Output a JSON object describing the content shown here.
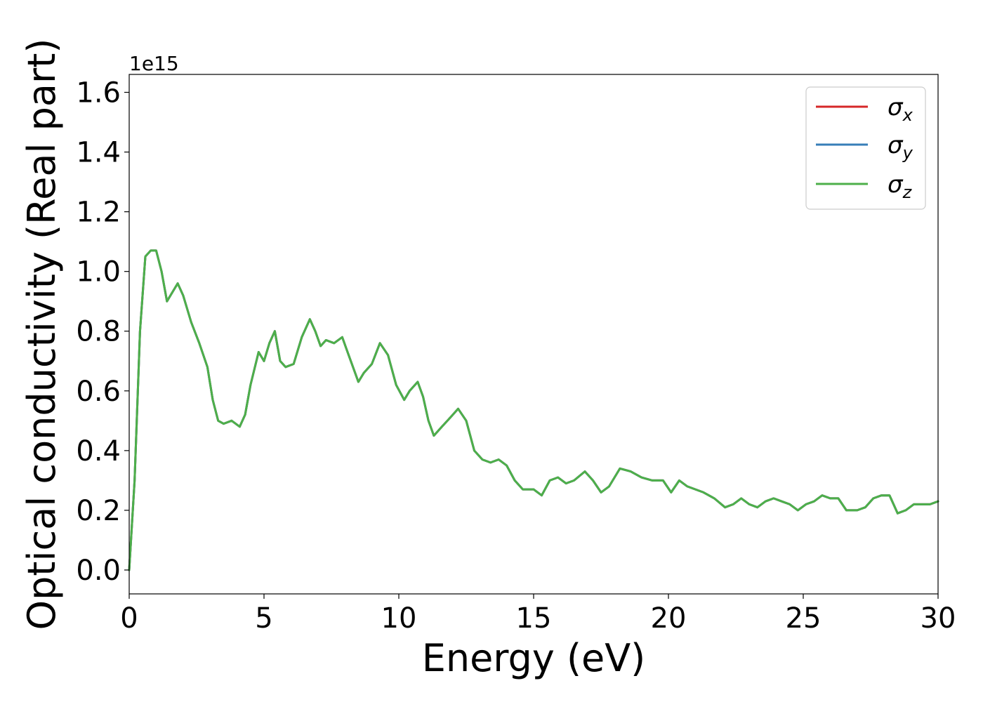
{
  "chart_data": {
    "type": "line",
    "xlabel": "Energy (eV)",
    "ylabel": "Optical conductivity (Real part)",
    "offset_text": "1e15",
    "xlim": [
      0,
      30
    ],
    "ylim": [
      -0.08,
      1.66
    ],
    "x_ticks": [
      0,
      5,
      10,
      15,
      20,
      25,
      30
    ],
    "x_tick_labels": [
      "0",
      "5",
      "10",
      "15",
      "20",
      "25",
      "30"
    ],
    "y_ticks": [
      0.0,
      0.2,
      0.4,
      0.6,
      0.8,
      1.0,
      1.2,
      1.4,
      1.6
    ],
    "y_tick_labels": [
      "0.0",
      "0.2",
      "0.4",
      "0.6",
      "0.8",
      "1.0",
      "1.2",
      "1.4",
      "1.6"
    ],
    "grid": false,
    "legend_position": "top-right",
    "x": [
      0,
      0.2,
      0.4,
      0.6,
      0.8,
      1.0,
      1.2,
      1.4,
      1.6,
      1.8,
      2.0,
      2.3,
      2.6,
      2.9,
      3.1,
      3.3,
      3.5,
      3.8,
      4.1,
      4.3,
      4.5,
      4.8,
      5.0,
      5.2,
      5.4,
      5.6,
      5.8,
      6.1,
      6.4,
      6.7,
      6.9,
      7.1,
      7.3,
      7.6,
      7.9,
      8.1,
      8.3,
      8.5,
      8.7,
      9.0,
      9.3,
      9.6,
      9.9,
      10.2,
      10.4,
      10.7,
      10.9,
      11.1,
      11.3,
      11.6,
      11.9,
      12.2,
      12.5,
      12.8,
      13.1,
      13.4,
      13.7,
      14.0,
      14.3,
      14.6,
      15.0,
      15.3,
      15.6,
      15.9,
      16.2,
      16.5,
      16.9,
      17.2,
      17.5,
      17.8,
      18.2,
      18.6,
      19.0,
      19.4,
      19.8,
      20.1,
      20.4,
      20.7,
      21.0,
      21.3,
      21.7,
      22.1,
      22.4,
      22.7,
      23.0,
      23.3,
      23.6,
      23.9,
      24.2,
      24.5,
      24.8,
      25.1,
      25.4,
      25.7,
      26.0,
      26.3,
      26.6,
      27.0,
      27.3,
      27.6,
      27.9,
      28.2,
      28.5,
      28.8,
      29.1,
      29.4,
      29.7,
      30.0
    ],
    "series": [
      {
        "name": "σ_x",
        "color": "#d62728",
        "values": [
          0.0,
          0.3,
          0.8,
          1.05,
          1.07,
          1.07,
          1.0,
          0.9,
          0.93,
          0.96,
          0.92,
          0.83,
          0.76,
          0.68,
          0.57,
          0.5,
          0.49,
          0.5,
          0.48,
          0.52,
          0.62,
          0.73,
          0.7,
          0.76,
          0.8,
          0.7,
          0.68,
          0.69,
          0.78,
          0.84,
          0.8,
          0.75,
          0.77,
          0.76,
          0.78,
          0.73,
          0.68,
          0.63,
          0.66,
          0.69,
          0.76,
          0.72,
          0.62,
          0.57,
          0.6,
          0.63,
          0.58,
          0.5,
          0.45,
          0.48,
          0.51,
          0.54,
          0.5,
          0.4,
          0.37,
          0.36,
          0.37,
          0.35,
          0.3,
          0.27,
          0.27,
          0.25,
          0.3,
          0.31,
          0.29,
          0.3,
          0.33,
          0.3,
          0.26,
          0.28,
          0.34,
          0.33,
          0.31,
          0.3,
          0.3,
          0.26,
          0.3,
          0.28,
          0.27,
          0.26,
          0.24,
          0.21,
          0.22,
          0.24,
          0.22,
          0.21,
          0.23,
          0.24,
          0.23,
          0.22,
          0.2,
          0.22,
          0.23,
          0.25,
          0.24,
          0.24,
          0.2,
          0.2,
          0.21,
          0.24,
          0.25,
          0.25,
          0.19,
          0.2,
          0.22,
          0.22,
          0.22,
          0.23
        ]
      },
      {
        "name": "σ_y",
        "color": "#377eb8",
        "values": [
          0.0,
          0.3,
          0.8,
          1.05,
          1.07,
          1.07,
          1.0,
          0.9,
          0.93,
          0.96,
          0.92,
          0.83,
          0.76,
          0.68,
          0.57,
          0.5,
          0.49,
          0.5,
          0.48,
          0.52,
          0.62,
          0.73,
          0.7,
          0.76,
          0.8,
          0.7,
          0.68,
          0.69,
          0.78,
          0.84,
          0.8,
          0.75,
          0.77,
          0.76,
          0.78,
          0.73,
          0.68,
          0.63,
          0.66,
          0.69,
          0.76,
          0.72,
          0.62,
          0.57,
          0.6,
          0.63,
          0.58,
          0.5,
          0.45,
          0.48,
          0.51,
          0.54,
          0.5,
          0.4,
          0.37,
          0.36,
          0.37,
          0.35,
          0.3,
          0.27,
          0.27,
          0.25,
          0.3,
          0.31,
          0.29,
          0.3,
          0.33,
          0.3,
          0.26,
          0.28,
          0.34,
          0.33,
          0.31,
          0.3,
          0.3,
          0.26,
          0.3,
          0.28,
          0.27,
          0.26,
          0.24,
          0.21,
          0.22,
          0.24,
          0.22,
          0.21,
          0.23,
          0.24,
          0.23,
          0.22,
          0.2,
          0.22,
          0.23,
          0.25,
          0.24,
          0.24,
          0.2,
          0.2,
          0.21,
          0.24,
          0.25,
          0.25,
          0.19,
          0.2,
          0.22,
          0.22,
          0.22,
          0.23
        ]
      },
      {
        "name": "σ_z",
        "color": "#4daf4a",
        "values": [
          0.0,
          0.3,
          0.8,
          1.05,
          1.07,
          1.07,
          1.0,
          0.9,
          0.93,
          0.96,
          0.92,
          0.83,
          0.76,
          0.68,
          0.57,
          0.5,
          0.49,
          0.5,
          0.48,
          0.52,
          0.62,
          0.73,
          0.7,
          0.76,
          0.8,
          0.7,
          0.68,
          0.69,
          0.78,
          0.84,
          0.8,
          0.75,
          0.77,
          0.76,
          0.78,
          0.73,
          0.68,
          0.63,
          0.66,
          0.69,
          0.76,
          0.72,
          0.62,
          0.57,
          0.6,
          0.63,
          0.58,
          0.5,
          0.45,
          0.48,
          0.51,
          0.54,
          0.5,
          0.4,
          0.37,
          0.36,
          0.37,
          0.35,
          0.3,
          0.27,
          0.27,
          0.25,
          0.3,
          0.31,
          0.29,
          0.3,
          0.33,
          0.3,
          0.26,
          0.28,
          0.34,
          0.33,
          0.31,
          0.3,
          0.3,
          0.26,
          0.3,
          0.28,
          0.27,
          0.26,
          0.24,
          0.21,
          0.22,
          0.24,
          0.22,
          0.21,
          0.23,
          0.24,
          0.23,
          0.22,
          0.2,
          0.22,
          0.23,
          0.25,
          0.24,
          0.24,
          0.2,
          0.2,
          0.21,
          0.24,
          0.25,
          0.25,
          0.19,
          0.2,
          0.22,
          0.22,
          0.22,
          0.23
        ]
      }
    ],
    "legend": [
      {
        "symbol": "σ",
        "sub": "x",
        "color": "#d62728"
      },
      {
        "symbol": "σ",
        "sub": "y",
        "color": "#377eb8"
      },
      {
        "symbol": "σ",
        "sub": "z",
        "color": "#4daf4a"
      }
    ]
  }
}
